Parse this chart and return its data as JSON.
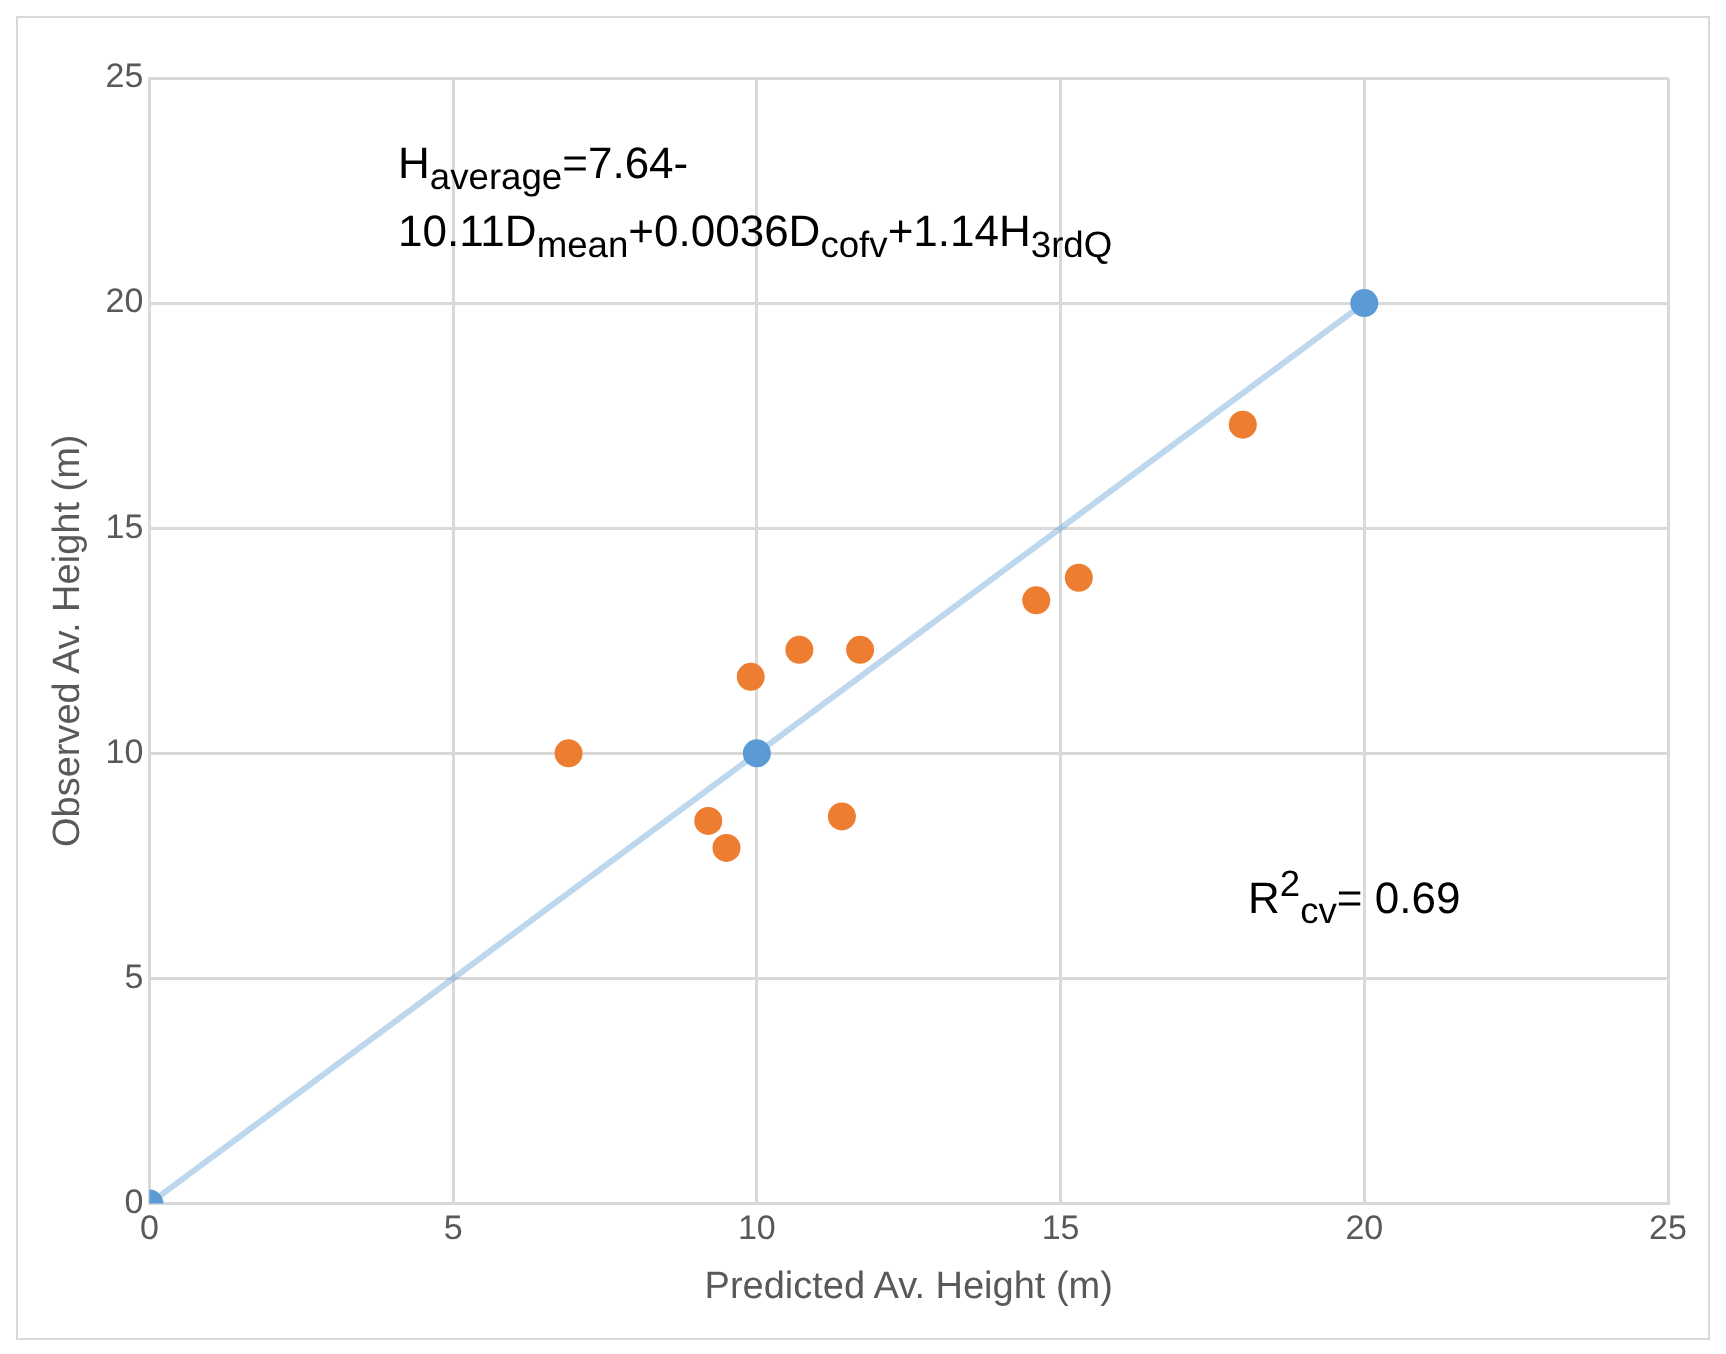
{
  "chart_data": {
    "type": "scatter",
    "xlabel": "Predicted Av. Height (m)",
    "ylabel": "Observed Av. Height (m)",
    "annotations": [
      "H$_{average}$=7.64-\n10.11D$_{mean}$+0.0036D$_{cofv}$+1.14H$_{3rdQ}$",
      "R$^{2}$$_{cv}$= 0.69"
    ],
    "series": [
      {
        "color": "#ed7d31",
        "x": [
          6.9,
          9.2,
          9.5,
          9.9,
          10.7,
          11.7,
          11.4,
          14.6,
          15.3,
          18.0
        ],
        "values": [
          10.0,
          8.5,
          7.9,
          11.7,
          12.3,
          12.3,
          8.6,
          13.4,
          13.9,
          17.3
        ]
      },
      {
        "type": "line",
        "color": "#5b9bd5",
        "x": [
          0,
          10,
          20
        ],
        "values": [
          0,
          10,
          20
        ]
      }
    ],
    "xlim": [
      0,
      25
    ],
    "ylim": [
      0,
      25
    ],
    "xticks": [
      0,
      5,
      10,
      15,
      20,
      25
    ],
    "yticks": [
      0,
      5,
      10,
      15,
      20,
      25
    ],
    "grid": true,
    "legend": false,
    "marker": "circle",
    "line_style": "solid"
  }
}
